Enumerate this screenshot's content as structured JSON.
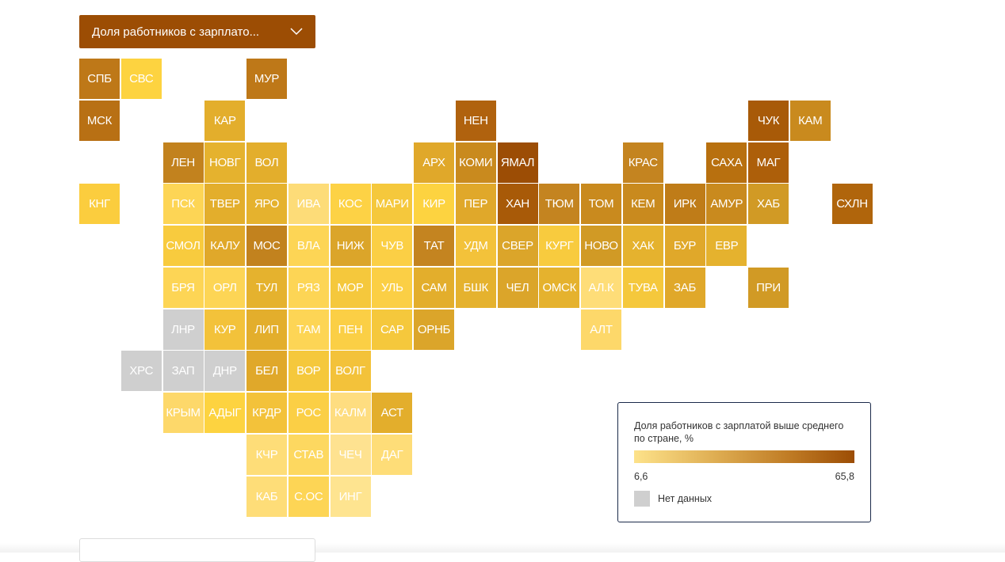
{
  "dropdown": {
    "label": "Доля работников с зарплато..."
  },
  "chart_data": {
    "type": "heatmap",
    "title": "Доля работников с зарплатой выше среднего по стране, %",
    "legend": {
      "title": "Доля работников с зарплатой выше среднего по стране, %",
      "min": "6,6",
      "max": "65,8",
      "min_color": "#fde28a",
      "max_color": "#9c4d05",
      "no_data_label": "Нет данных",
      "no_data_color": "#cfcfcf",
      "placement": "bottom-right"
    },
    "tiles": [
      {
        "label": "СПБ",
        "color": "#be7818"
      },
      {
        "label": "СВС",
        "color": "#fdd340"
      },
      {
        "label": "МУР",
        "color": "#be7818"
      },
      {
        "label": "МСК",
        "color": "#b87014"
      },
      {
        "label": "КАР",
        "color": "#e3ae2c"
      },
      {
        "label": "НЕН",
        "color": "#b0620e"
      },
      {
        "label": "ЧУК",
        "color": "#a85a08"
      },
      {
        "label": "КАМ",
        "color": "#c98a1e"
      },
      {
        "label": "ЛЕН",
        "color": "#c2821e"
      },
      {
        "label": "НОВГ",
        "color": "#e5b22e"
      },
      {
        "label": "ВОЛ",
        "color": "#e3ae2c"
      },
      {
        "label": "АРХ",
        "color": "#e0a82a"
      },
      {
        "label": "КОМИ",
        "color": "#c98a1e"
      },
      {
        "label": "ЯМАЛ",
        "color": "#9c4d05"
      },
      {
        "label": "КРАС",
        "color": "#c48420"
      },
      {
        "label": "САХА",
        "color": "#b8700f"
      },
      {
        "label": "МАГ",
        "color": "#ad5f0a"
      },
      {
        "label": "КНГ",
        "color": "#fbcd3e"
      },
      {
        "label": "ПСК",
        "color": "#fdd555"
      },
      {
        "label": "ТВЕР",
        "color": "#e3ae2c"
      },
      {
        "label": "ЯРО",
        "color": "#e5b22e"
      },
      {
        "label": "ИВА",
        "color": "#fddc78"
      },
      {
        "label": "КОС",
        "color": "#fdd245"
      },
      {
        "label": "МАРИ",
        "color": "#f5c83c"
      },
      {
        "label": "КИР",
        "color": "#fdd340"
      },
      {
        "label": "ПЕР",
        "color": "#e0a82a"
      },
      {
        "label": "ХАН",
        "color": "#a85a08"
      },
      {
        "label": "ТЮМ",
        "color": "#c48420"
      },
      {
        "label": "ТОМ",
        "color": "#c98a1e"
      },
      {
        "label": "КЕМ",
        "color": "#c98a1e"
      },
      {
        "label": "ИРК",
        "color": "#bf7c18"
      },
      {
        "label": "АМУР",
        "color": "#c98a1e"
      },
      {
        "label": "ХАБ",
        "color": "#d19a25"
      },
      {
        "label": "СХЛН",
        "color": "#b0650c"
      },
      {
        "label": "СМОЛ",
        "color": "#f8cb3e"
      },
      {
        "label": "КАЛУ",
        "color": "#e0a82a"
      },
      {
        "label": "МОС",
        "color": "#c2821e"
      },
      {
        "label": "ВЛА",
        "color": "#fdd555"
      },
      {
        "label": "НИЖ",
        "color": "#dba52a"
      },
      {
        "label": "ЧУВ",
        "color": "#fbcf45"
      },
      {
        "label": "ТАТ",
        "color": "#c48420"
      },
      {
        "label": "УДМ",
        "color": "#f3c23a"
      },
      {
        "label": "СВЕР",
        "color": "#dba52a"
      },
      {
        "label": "КУРГ",
        "color": "#f8cb3e"
      },
      {
        "label": "НОВО",
        "color": "#d19a25"
      },
      {
        "label": "ХАК",
        "color": "#e5b22e"
      },
      {
        "label": "БУР",
        "color": "#e0a82a"
      },
      {
        "label": "ЕВР",
        "color": "#e5b22e"
      },
      {
        "label": "БРЯ",
        "color": "#fdd555"
      },
      {
        "label": "ОРЛ",
        "color": "#fdd555"
      },
      {
        "label": "ТУЛ",
        "color": "#e5b22e"
      },
      {
        "label": "РЯЗ",
        "color": "#fdd555"
      },
      {
        "label": "МОР",
        "color": "#f5c83c"
      },
      {
        "label": "УЛЬ",
        "color": "#fbcf45"
      },
      {
        "label": "САМ",
        "color": "#e3ae2c"
      },
      {
        "label": "БШК",
        "color": "#e5b22e"
      },
      {
        "label": "ЧЕЛ",
        "color": "#dba52a"
      },
      {
        "label": "ОМСК",
        "color": "#e5b22e"
      },
      {
        "label": "АЛ.К",
        "color": "#fedd78"
      },
      {
        "label": "ТУВА",
        "color": "#f5c83c"
      },
      {
        "label": "ЗАБ",
        "color": "#e0a82a"
      },
      {
        "label": "ПРИ",
        "color": "#d19a25"
      },
      {
        "label": "ЛНР",
        "color": "#cfcfcf"
      },
      {
        "label": "КУР",
        "color": "#f3c23a"
      },
      {
        "label": "ЛИП",
        "color": "#e3ae2c"
      },
      {
        "label": "ТАМ",
        "color": "#fdd555"
      },
      {
        "label": "ПЕН",
        "color": "#fbcf45"
      },
      {
        "label": "САР",
        "color": "#f5c83c"
      },
      {
        "label": "ОРНБ",
        "color": "#dba52a"
      },
      {
        "label": "АЛТ",
        "color": "#fdd86a"
      },
      {
        "label": "ХРС",
        "color": "#cfcfcf"
      },
      {
        "label": "ЗАП",
        "color": "#cfcfcf"
      },
      {
        "label": "ДНР",
        "color": "#cfcfcf"
      },
      {
        "label": "БЕЛ",
        "color": "#e0a82a"
      },
      {
        "label": "ВОР",
        "color": "#f5c83c"
      },
      {
        "label": "ВОЛГ",
        "color": "#f3c23a"
      },
      {
        "label": "КРЫМ",
        "color": "#fdd86a"
      },
      {
        "label": "АДЫГ",
        "color": "#fdd340"
      },
      {
        "label": "КРДР",
        "color": "#f3c23a"
      },
      {
        "label": "РОС",
        "color": "#fbcf45"
      },
      {
        "label": "КАЛМ",
        "color": "#fedd80"
      },
      {
        "label": "АСТ",
        "color": "#e3ae2c"
      },
      {
        "label": "КЧР",
        "color": "#fedd78"
      },
      {
        "label": "СТАВ",
        "color": "#fdd860"
      },
      {
        "label": "ЧЕЧ",
        "color": "#fee290"
      },
      {
        "label": "ДАГ",
        "color": "#fedd78"
      },
      {
        "label": "КАБ",
        "color": "#fedd78"
      },
      {
        "label": "С.ОС",
        "color": "#fdd555"
      },
      {
        "label": "ИНГ",
        "color": "#fee490"
      }
    ]
  }
}
